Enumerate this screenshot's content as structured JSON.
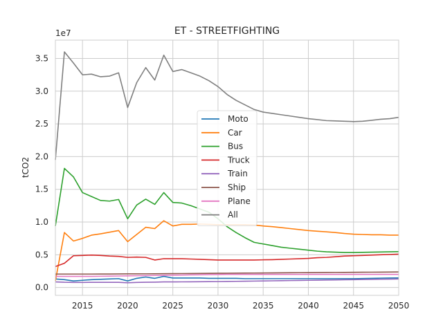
{
  "chart_data": {
    "type": "line",
    "title": "ET - STREETFIGHTING",
    "xlabel": "",
    "ylabel": "tCO2",
    "y_offset_label": "1e7",
    "xlim": [
      2012,
      2050
    ],
    "ylim": [
      -0.12,
      3.78
    ],
    "x_ticks": [
      2015,
      2020,
      2025,
      2030,
      2035,
      2040,
      2045,
      2050
    ],
    "y_ticks": [
      0.0,
      0.5,
      1.0,
      1.5,
      2.0,
      2.5,
      3.0,
      3.5
    ],
    "y_tick_labels": [
      "0.0",
      "0.5",
      "1.0",
      "1.5",
      "2.0",
      "2.5",
      "3.0",
      "3.5"
    ],
    "grid": true,
    "legend_position": "center",
    "x": [
      2012,
      2013,
      2014,
      2015,
      2016,
      2017,
      2018,
      2019,
      2020,
      2021,
      2022,
      2023,
      2024,
      2025,
      2026,
      2027,
      2028,
      2029,
      2030,
      2031,
      2032,
      2033,
      2034,
      2035,
      2036,
      2037,
      2038,
      2039,
      2040,
      2041,
      2042,
      2043,
      2044,
      2045,
      2046,
      2047,
      2048,
      2049,
      2050
    ],
    "series": [
      {
        "name": "Moto",
        "color": "#1f77b4",
        "values": [
          0.13,
          0.12,
          0.1,
          0.11,
          0.12,
          0.125,
          0.13,
          0.135,
          0.1,
          0.14,
          0.16,
          0.14,
          0.17,
          0.145,
          0.145,
          0.145,
          0.145,
          0.14,
          0.14,
          0.14,
          0.14,
          0.135,
          0.135,
          0.135,
          0.135,
          0.135,
          0.135,
          0.135,
          0.135,
          0.135,
          0.135,
          0.135,
          0.135,
          0.135,
          0.137,
          0.14,
          0.143,
          0.145,
          0.147
        ]
      },
      {
        "name": "Car",
        "color": "#ff7f0e",
        "values": [
          0.1,
          0.84,
          0.71,
          0.75,
          0.8,
          0.82,
          0.845,
          0.87,
          0.7,
          0.81,
          0.92,
          0.9,
          1.02,
          0.94,
          0.965,
          0.965,
          0.97,
          0.965,
          0.96,
          0.96,
          0.96,
          0.96,
          0.955,
          0.94,
          0.93,
          0.915,
          0.9,
          0.885,
          0.87,
          0.86,
          0.85,
          0.84,
          0.825,
          0.815,
          0.81,
          0.805,
          0.805,
          0.8,
          0.8
        ]
      },
      {
        "name": "Bus",
        "color": "#2ca02c",
        "values": [
          0.94,
          1.82,
          1.69,
          1.45,
          1.39,
          1.33,
          1.32,
          1.345,
          1.05,
          1.26,
          1.35,
          1.27,
          1.45,
          1.3,
          1.29,
          1.25,
          1.2,
          1.15,
          1.05,
          0.93,
          0.84,
          0.76,
          0.69,
          0.665,
          0.64,
          0.615,
          0.6,
          0.585,
          0.57,
          0.555,
          0.545,
          0.54,
          0.535,
          0.535,
          0.537,
          0.54,
          0.542,
          0.545,
          0.548
        ]
      },
      {
        "name": "Truck",
        "color": "#d62728",
        "values": [
          0.32,
          0.37,
          0.485,
          0.49,
          0.495,
          0.49,
          0.48,
          0.475,
          0.46,
          0.465,
          0.46,
          0.42,
          0.44,
          0.44,
          0.44,
          0.435,
          0.43,
          0.425,
          0.42,
          0.42,
          0.42,
          0.42,
          0.42,
          0.423,
          0.425,
          0.43,
          0.435,
          0.44,
          0.445,
          0.455,
          0.46,
          0.47,
          0.48,
          0.485,
          0.49,
          0.495,
          0.5,
          0.505,
          0.51
        ]
      },
      {
        "name": "Train",
        "color": "#9467bd",
        "values": [
          0.085,
          0.08,
          0.078,
          0.078,
          0.079,
          0.079,
          0.079,
          0.079,
          0.072,
          0.077,
          0.08,
          0.082,
          0.085,
          0.085,
          0.086,
          0.087,
          0.088,
          0.089,
          0.09,
          0.092,
          0.094,
          0.096,
          0.098,
          0.1,
          0.102,
          0.104,
          0.106,
          0.108,
          0.11,
          0.112,
          0.114,
          0.116,
          0.118,
          0.12,
          0.122,
          0.124,
          0.126,
          0.128,
          0.13
        ]
      },
      {
        "name": "Ship",
        "color": "#8c564b",
        "values": [
          0.205,
          0.205,
          0.205,
          0.205,
          0.205,
          0.206,
          0.206,
          0.207,
          0.208,
          0.208,
          0.209,
          0.21,
          0.211,
          0.212,
          0.213,
          0.214,
          0.215,
          0.216,
          0.217,
          0.218,
          0.219,
          0.22,
          0.221,
          0.222,
          0.223,
          0.224,
          0.225,
          0.226,
          0.227,
          0.228,
          0.229,
          0.23,
          0.231,
          0.232,
          0.233,
          0.234,
          0.235,
          0.236,
          0.237
        ]
      },
      {
        "name": "Plane",
        "color": "#e377c2",
        "values": [
          0.17,
          0.17,
          0.17,
          0.17,
          0.17,
          0.172,
          0.174,
          0.176,
          0.178,
          0.18,
          0.182,
          0.184,
          0.186,
          0.188,
          0.19,
          0.192,
          0.194,
          0.196,
          0.198,
          0.2,
          0.2,
          0.2,
          0.2,
          0.2,
          0.2,
          0.2,
          0.2,
          0.2,
          0.2,
          0.2,
          0.2,
          0.2,
          0.2,
          0.2,
          0.2,
          0.2,
          0.2,
          0.2,
          0.2
        ]
      },
      {
        "name": "All",
        "color": "#7f7f7f",
        "values": [
          1.95,
          3.6,
          3.43,
          3.25,
          3.26,
          3.22,
          3.23,
          3.28,
          2.75,
          3.13,
          3.36,
          3.17,
          3.55,
          3.3,
          3.33,
          3.28,
          3.23,
          3.16,
          3.07,
          2.95,
          2.86,
          2.79,
          2.72,
          2.68,
          2.66,
          2.64,
          2.62,
          2.6,
          2.58,
          2.565,
          2.55,
          2.545,
          2.54,
          2.535,
          2.54,
          2.555,
          2.57,
          2.58,
          2.6
        ]
      }
    ]
  }
}
